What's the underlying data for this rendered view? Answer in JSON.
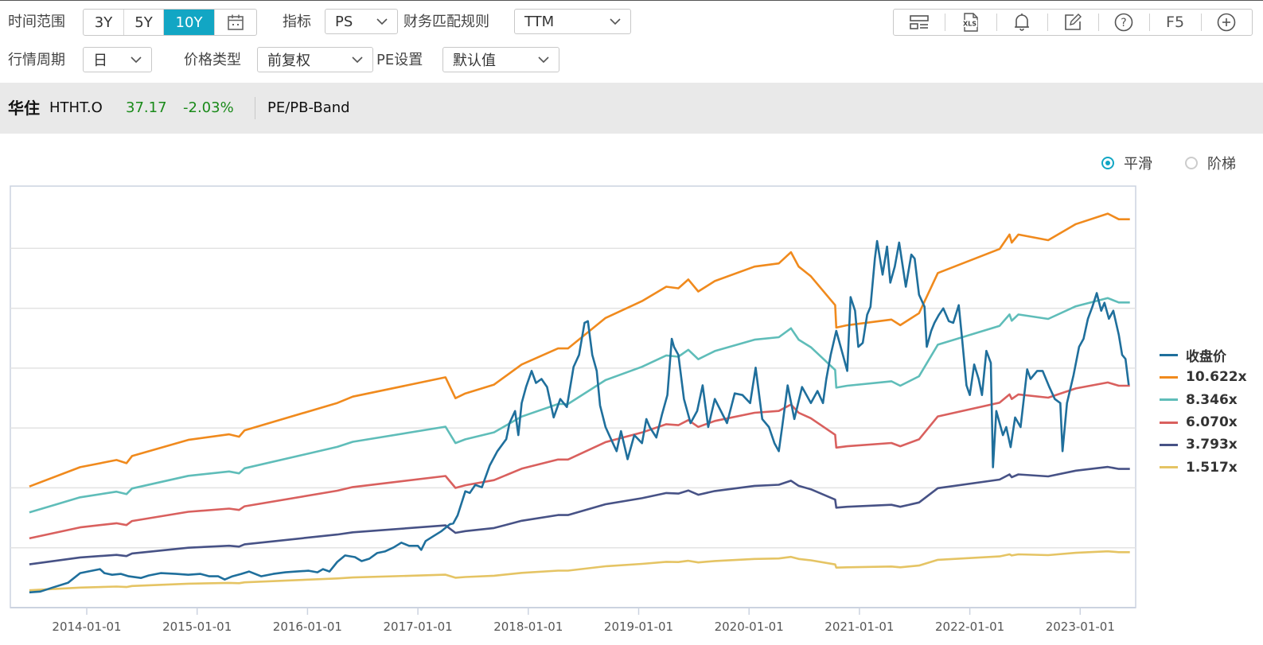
{
  "toolbar_left": {
    "time_range_label": "时间范围",
    "time_range_options": [
      "3Y",
      "5Y",
      "10Y"
    ],
    "time_range_selected": "10Y",
    "indicator_label": "指标",
    "indicator_value": "PS",
    "match_rule_label": "财务匹配规则",
    "match_rule_value": "TTM",
    "period_label": "行情周期",
    "period_value": "日",
    "price_type_label": "价格类型",
    "price_type_value": "前复权",
    "pe_setting_label": "PE设置",
    "pe_setting_value": "默认值"
  },
  "toolbar_right": {
    "icons": [
      "layout-icon",
      "xls-export-icon",
      "bell-icon",
      "edit-icon",
      "help-icon",
      "refresh-f5",
      "add-icon"
    ],
    "xls_text": "XLS",
    "f5_label": "F5"
  },
  "stock": {
    "name": "华住",
    "code": "HTHT.O",
    "price": "37.17",
    "change": "-2.03%",
    "view": "PE/PB-Band",
    "up_down_color": "#1a8a1a"
  },
  "mode": {
    "smooth_label": "平滑",
    "step_label": "阶梯",
    "selected": "平滑"
  },
  "chart_data": {
    "type": "line",
    "title": "",
    "xlabel": "",
    "ylabel": "",
    "x_unit": "decimal year",
    "xlim": [
      2013.3,
      2023.5
    ],
    "ylim": [
      0,
      70.4
    ],
    "y_gridlines": [
      10,
      20,
      30,
      40,
      50,
      60
    ],
    "grid": true,
    "legend_position": "right",
    "x_ticks": [
      {
        "value": 2014,
        "label": "2014-01-01"
      },
      {
        "value": 2015,
        "label": "2015-01-01"
      },
      {
        "value": 2016,
        "label": "2016-01-01"
      },
      {
        "value": 2017,
        "label": "2017-01-01"
      },
      {
        "value": 2018,
        "label": "2018-01-01"
      },
      {
        "value": 2019,
        "label": "2019-01-01"
      },
      {
        "value": 2020,
        "label": "2020-01-01"
      },
      {
        "value": 2021,
        "label": "2021-01-01"
      },
      {
        "value": 2022,
        "label": "2022-01-01"
      },
      {
        "value": 2023,
        "label": "2023-01-01"
      }
    ],
    "close": {
      "name": "收盘价",
      "color": "#1f6f9c",
      "x": [
        2013.48,
        2013.58,
        2013.69,
        2013.83,
        2013.94,
        2014.01,
        2014.12,
        2014.16,
        2014.23,
        2014.31,
        2014.38,
        2014.49,
        2014.56,
        2014.67,
        2014.81,
        2014.92,
        2015.03,
        2015.11,
        2015.19,
        2015.25,
        2015.32,
        2015.4,
        2015.47,
        2015.58,
        2015.69,
        2015.8,
        2015.9,
        2016.01,
        2016.09,
        2016.14,
        2016.2,
        2016.27,
        2016.34,
        2016.43,
        2016.49,
        2016.56,
        2016.63,
        2016.7,
        2016.78,
        2016.85,
        2016.92,
        2017.0,
        2017.03,
        2017.07,
        2017.14,
        2017.21,
        2017.29,
        2017.32,
        2017.36,
        2017.43,
        2017.47,
        2017.52,
        2017.58,
        2017.65,
        2017.72,
        2017.8,
        2017.83,
        2017.88,
        2017.91,
        2017.94,
        2017.98,
        2018.03,
        2018.07,
        2018.12,
        2018.17,
        2018.23,
        2018.29,
        2018.35,
        2018.41,
        2018.46,
        2018.51,
        2018.54,
        2018.58,
        2018.62,
        2018.65,
        2018.7,
        2018.75,
        2018.8,
        2018.84,
        2018.9,
        2018.96,
        2019.03,
        2019.07,
        2019.1,
        2019.16,
        2019.21,
        2019.26,
        2019.3,
        2019.32,
        2019.36,
        2019.41,
        2019.47,
        2019.53,
        2019.58,
        2019.63,
        2019.69,
        2019.8,
        2019.87,
        2019.94,
        2020.01,
        2020.06,
        2020.12,
        2020.18,
        2020.23,
        2020.27,
        2020.3,
        2020.35,
        2020.41,
        2020.48,
        2020.56,
        2020.62,
        2020.67,
        2020.7,
        2020.74,
        2020.79,
        2020.85,
        2020.89,
        2020.92,
        2020.96,
        2020.99,
        2021.03,
        2021.07,
        2021.1,
        2021.14,
        2021.16,
        2021.21,
        2021.25,
        2021.28,
        2021.32,
        2021.36,
        2021.42,
        2021.47,
        2021.5,
        2021.54,
        2021.59,
        2021.61,
        2021.65,
        2021.68,
        2021.72,
        2021.76,
        2021.81,
        2021.85,
        2021.9,
        2021.93,
        2021.97,
        2022.0,
        2022.04,
        2022.08,
        2022.11,
        2022.15,
        2022.19,
        2022.21,
        2022.24,
        2022.3,
        2022.33,
        2022.37,
        2022.41,
        2022.46,
        2022.52,
        2022.55,
        2022.61,
        2022.66,
        2022.72,
        2022.77,
        2022.82,
        2022.84,
        2022.88,
        2022.94,
        2022.99,
        2023.03,
        2023.07,
        2023.11,
        2023.15,
        2023.19,
        2023.22,
        2023.26,
        2023.3,
        2023.35,
        2023.38,
        2023.41,
        2023.44
      ],
      "y": [
        2.55,
        2.68,
        3.35,
        4.15,
        5.76,
        6.03,
        6.43,
        5.76,
        5.49,
        5.63,
        5.23,
        4.96,
        5.36,
        5.76,
        5.63,
        5.49,
        5.63,
        5.23,
        5.23,
        4.69,
        5.23,
        5.63,
        6.03,
        5.23,
        5.63,
        5.9,
        6.03,
        6.16,
        5.9,
        6.43,
        6.03,
        7.64,
        8.71,
        8.44,
        7.77,
        8.17,
        9.11,
        9.38,
        10.05,
        10.85,
        10.32,
        10.32,
        9.65,
        11.12,
        11.93,
        12.73,
        13.94,
        14.07,
        15.41,
        19.43,
        19.16,
        20.5,
        20.1,
        23.72,
        26.13,
        28.14,
        30.82,
        32.83,
        28.81,
        34.17,
        36.85,
        39.53,
        37.52,
        38.19,
        36.85,
        31.76,
        34.84,
        33.5,
        40.2,
        42.21,
        47.57,
        47.84,
        42.21,
        39.53,
        33.77,
        30.15,
        28.14,
        26.13,
        29.48,
        24.79,
        28.81,
        27.47,
        31.49,
        30.15,
        28.41,
        32.16,
        35.51,
        44.89,
        43.55,
        42.21,
        34.84,
        30.82,
        32.83,
        37.12,
        30.15,
        34.84,
        30.82,
        35.78,
        35.51,
        34.17,
        40.07,
        31.49,
        30.15,
        27.47,
        26.13,
        30.15,
        37.12,
        31.49,
        36.85,
        34.17,
        36.18,
        34.17,
        38.19,
        42.21,
        46.23,
        42.21,
        39.53,
        51.86,
        49.58,
        43.55,
        44.22,
        48.91,
        50.25,
        58.29,
        61.24,
        55.61,
        60.3,
        54.27,
        56.95,
        60.97,
        53.6,
        58.96,
        58.29,
        52.26,
        50.25,
        43.55,
        46.23,
        47.57,
        48.91,
        49.98,
        47.84,
        47.57,
        50.52,
        44.89,
        37.12,
        35.51,
        40.6,
        38.19,
        35.51,
        42.88,
        40.87,
        23.45,
        32.83,
        28.81,
        30.15,
        26.8,
        31.76,
        30.15,
        39.8,
        38.19,
        39.53,
        39.53,
        36.85,
        34.84,
        34.17,
        26.13,
        34.17,
        38.86,
        43.55,
        44.89,
        48.24,
        50.25,
        52.53,
        49.58,
        50.92,
        48.24,
        49.58,
        45.56,
        42.21,
        41.54,
        37.17
      ]
    },
    "band_x": [
      2013.48,
      2013.94,
      2014.27,
      2014.36,
      2014.41,
      2014.92,
      2015.29,
      2015.38,
      2015.43,
      2016.27,
      2016.41,
      2017.25,
      2017.34,
      2017.43,
      2017.69,
      2017.94,
      2018.27,
      2018.36,
      2018.7,
      2019.03,
      2019.25,
      2019.36,
      2019.45,
      2019.54,
      2019.69,
      2020.05,
      2020.27,
      2020.38,
      2020.45,
      2020.56,
      2020.78,
      2020.79,
      2020.89,
      2021.29,
      2021.37,
      2021.54,
      2021.71,
      2022.27,
      2022.36,
      2022.38,
      2022.44,
      2022.71,
      2022.96,
      2023.25,
      2023.35,
      2023.45
    ],
    "band_price_per_1x": [
      1.905,
      2.208,
      2.321,
      2.271,
      2.384,
      2.637,
      2.725,
      2.687,
      2.788,
      3.217,
      3.318,
      3.621,
      3.293,
      3.368,
      3.507,
      3.823,
      4.075,
      4.075,
      4.554,
      4.819,
      5.046,
      5.021,
      5.16,
      4.971,
      5.135,
      5.362,
      5.412,
      5.589,
      5.362,
      5.21,
      4.756,
      4.403,
      4.441,
      4.529,
      4.441,
      4.63,
      5.261,
      5.639,
      5.866,
      5.74,
      5.866,
      5.778,
      6.03,
      6.195,
      6.106,
      6.106
    ],
    "bands": [
      {
        "name": "10.622x",
        "multiplier": 10.622,
        "color": "#f08a1d"
      },
      {
        "name": "8.346x",
        "multiplier": 8.346,
        "color": "#5fbdb9"
      },
      {
        "name": "6.070x",
        "multiplier": 6.07,
        "color": "#d9605e"
      },
      {
        "name": "3.793x",
        "multiplier": 3.793,
        "color": "#475286"
      },
      {
        "name": "1.517x",
        "multiplier": 1.517,
        "color": "#e5c464"
      }
    ]
  }
}
